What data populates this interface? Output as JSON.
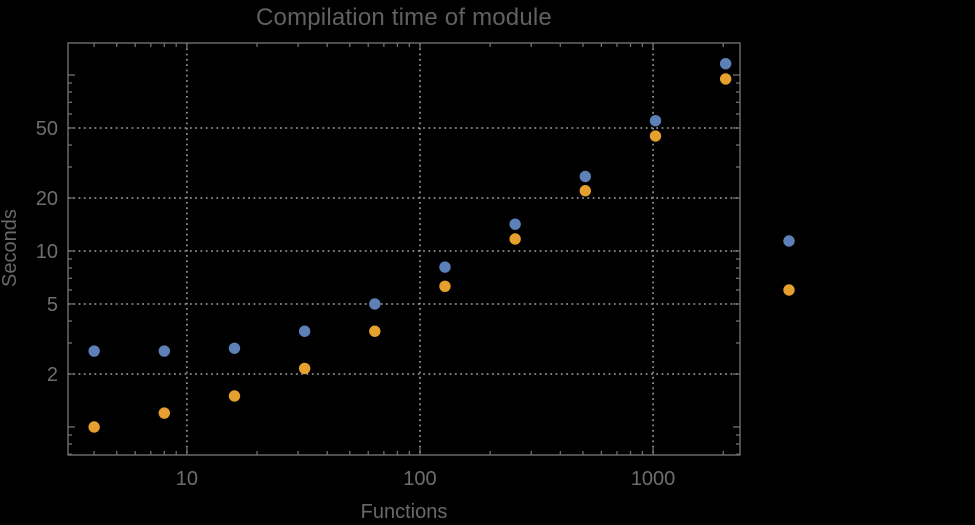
{
  "chart_data": {
    "type": "scatter",
    "title": "Compilation time of module",
    "xlabel": "Functions",
    "ylabel": "Seconds",
    "xscale": "log",
    "yscale": "log",
    "xlim": [
      3.09,
      2360
    ],
    "ylim": [
      0.693,
      152
    ],
    "grid": "dotted-at-major-ticks",
    "legend_position": "outside-right-no-text",
    "x": [
      4,
      8,
      16,
      32,
      64,
      128,
      256,
      512,
      1024,
      2048
    ],
    "series": [
      {
        "name": "series-1-blue",
        "color": "#5c80b7",
        "values": [
          2.7,
          2.7,
          2.8,
          3.5,
          5.0,
          8.1,
          14.2,
          26.5,
          55,
          116
        ]
      },
      {
        "name": "series-2-orange",
        "color": "#e6a02d",
        "values": [
          1.0,
          1.2,
          1.5,
          2.15,
          3.5,
          6.3,
          11.7,
          22,
          45,
          95
        ]
      }
    ],
    "x_ticks": {
      "major": [
        {
          "value": 10,
          "label": "10"
        },
        {
          "value": 100,
          "label": "100"
        },
        {
          "value": 1000,
          "label": "1000"
        }
      ],
      "minor": [
        4,
        5,
        6,
        7,
        8,
        9,
        20,
        30,
        40,
        50,
        60,
        70,
        80,
        90,
        200,
        300,
        400,
        500,
        600,
        700,
        800,
        900,
        2000
      ]
    },
    "y_ticks": {
      "major": [
        {
          "value": 2,
          "label": "2"
        },
        {
          "value": 5,
          "label": "5"
        },
        {
          "value": 10,
          "label": "10"
        },
        {
          "value": 20,
          "label": "20"
        },
        {
          "value": 50,
          "label": "50"
        }
      ],
      "unlabeled_major": [
        1,
        100
      ],
      "minor": [
        0.7,
        0.8,
        0.9,
        3,
        4,
        6,
        7,
        8,
        9,
        30,
        40,
        60,
        70,
        80,
        90
      ]
    },
    "legend": [
      {
        "series": "series-1-blue",
        "color": "#5c80b7"
      },
      {
        "series": "series-2-orange",
        "color": "#e6a02d"
      }
    ]
  },
  "colors": {
    "background": "#000000",
    "frame": "#6f6f6f",
    "grid": "#8b8b8b",
    "text": "#696969",
    "series1": "#5c80b7",
    "series2": "#e6a02d"
  }
}
